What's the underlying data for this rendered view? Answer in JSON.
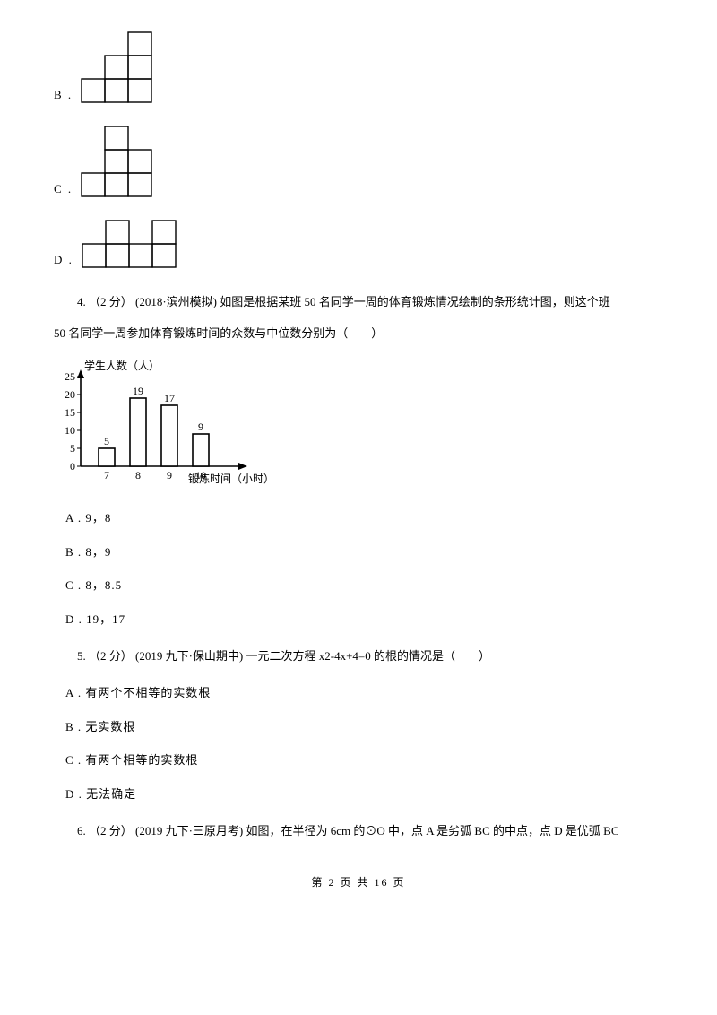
{
  "optB": {
    "label": "B ."
  },
  "optC": {
    "label": "C ."
  },
  "optD": {
    "label": "D ."
  },
  "q4": {
    "prefix": "4. （2 分） (2018·滨州模拟) 如图是根据某班 50 名同学一周的体育锻炼情况绘制的条形统计图，则这个班",
    "line2": "50 名同学一周参加体育锻炼时间的众数与中位数分别为（　　）",
    "chart": {
      "y_title": "学生人数（人）",
      "x_title": "锻炼时间（小时）",
      "y_ticks": [
        "25",
        "20",
        "15",
        "10",
        "5",
        "0"
      ],
      "x_ticks": [
        "7",
        "8",
        "9",
        "10"
      ],
      "bar_labels": [
        "5",
        "19",
        "17",
        "9"
      ],
      "stroke": "#000000",
      "bg": "#ffffff"
    },
    "A": "A . 9，8",
    "B": "B . 8，9",
    "C": "C . 8，8.5",
    "D": "D . 19，17"
  },
  "q5": {
    "text": "5. （2 分） (2019 九下·保山期中) 一元二次方程 x2-4x+4=0 的根的情况是（　　）",
    "A": "A . 有两个不相等的实数根",
    "B": "B . 无实数根",
    "C": "C . 有两个相等的实数根",
    "D": "D . 无法确定"
  },
  "q6": {
    "text": "6. （2 分） (2019 九下·三原月考) 如图，在半径为 6cm 的⊙O 中，点 A 是劣弧 BC 的中点，点 D 是优弧 BC"
  },
  "footer": "第 2 页 共 16 页",
  "shapes": {
    "cell": 26,
    "stroke": "#000000",
    "B_cells": [
      [
        0,
        0
      ],
      [
        1,
        0
      ],
      [
        2,
        0
      ],
      [
        1,
        1
      ],
      [
        2,
        1
      ],
      [
        2,
        2
      ]
    ],
    "C_cells": [
      [
        0,
        0
      ],
      [
        1,
        0
      ],
      [
        2,
        0
      ],
      [
        1,
        1
      ],
      [
        2,
        1
      ],
      [
        1,
        2
      ]
    ],
    "D_cells": [
      [
        0,
        0
      ],
      [
        1,
        0
      ],
      [
        2,
        0
      ],
      [
        3,
        0
      ],
      [
        1,
        1
      ],
      [
        3,
        1
      ]
    ]
  }
}
